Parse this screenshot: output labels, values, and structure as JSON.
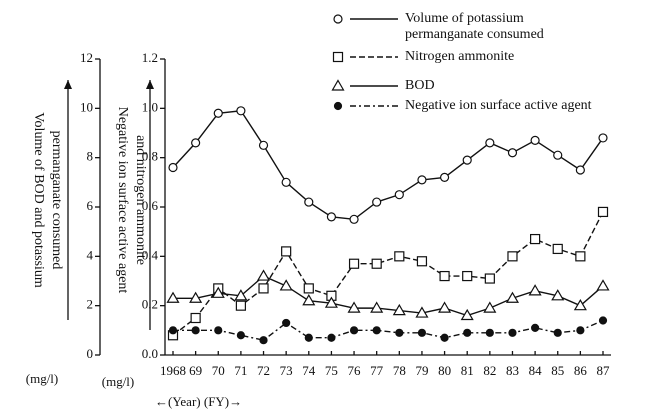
{
  "chart_data": {
    "type": "line",
    "ylabel": [
      "Volume of BOD and potassium",
      "permanganate consumed"
    ],
    "y2label": [
      "Negative ion surface active agent",
      "and nitrogen ammonite"
    ],
    "yunit": "(mg/l)",
    "y2unit": "(mg/l)",
    "xlabel": "←(Year) (FY)→",
    "categories": [
      "1968",
      "69",
      "70",
      "71",
      "72",
      "73",
      "74",
      "75",
      "76",
      "77",
      "78",
      "79",
      "80",
      "81",
      "82",
      "83",
      "84",
      "85",
      "86",
      "87"
    ],
    "ylim": [
      0,
      12
    ],
    "yticks": [
      0,
      2,
      4,
      6,
      8,
      10,
      12
    ],
    "y2lim": [
      0,
      1.2
    ],
    "y2ticks": [
      {
        "value": 0,
        "label": "0.0"
      },
      0.2,
      0.4,
      0.6,
      0.8,
      {
        "value": 1,
        "label": "1.0"
      },
      1.2
    ],
    "series": [
      {
        "name": "Volume of potassium permanganate consumed",
        "color": "#111111",
        "marker": "circle-open",
        "line": "solid",
        "axis": "y",
        "values": [
          7.6,
          8.6,
          9.8,
          9.9,
          8.5,
          7.0,
          6.2,
          5.6,
          5.5,
          6.2,
          6.5,
          7.1,
          7.2,
          7.9,
          8.6,
          8.2,
          8.7,
          8.1,
          7.5,
          8.8
        ]
      },
      {
        "name": "Nitrogen ammonite",
        "color": "#111111",
        "marker": "square-open",
        "line": "dashed",
        "axis": "y2",
        "values": [
          0.08,
          0.15,
          0.27,
          0.2,
          0.27,
          0.42,
          0.27,
          0.24,
          0.37,
          0.37,
          0.4,
          0.38,
          0.32,
          0.32,
          0.31,
          0.4,
          0.47,
          0.43,
          0.4,
          0.58
        ]
      },
      {
        "name": "BOD",
        "color": "#111111",
        "marker": "triangle-open",
        "line": "solid",
        "axis": "y",
        "values": [
          2.3,
          2.3,
          2.5,
          2.4,
          3.2,
          2.8,
          2.2,
          2.1,
          1.9,
          1.9,
          1.8,
          1.7,
          1.9,
          1.6,
          1.9,
          2.3,
          2.6,
          2.4,
          2.0,
          2.8
        ]
      },
      {
        "name": "Negative ion surface active agent",
        "color": "#111111",
        "marker": "circle-filled",
        "line": "dashdot",
        "axis": "y2",
        "values": [
          0.1,
          0.1,
          0.1,
          0.08,
          0.06,
          0.13,
          0.07,
          0.07,
          0.1,
          0.1,
          0.09,
          0.09,
          0.07,
          0.09,
          0.09,
          0.09,
          0.11,
          0.09,
          0.1,
          0.14
        ]
      }
    ]
  }
}
